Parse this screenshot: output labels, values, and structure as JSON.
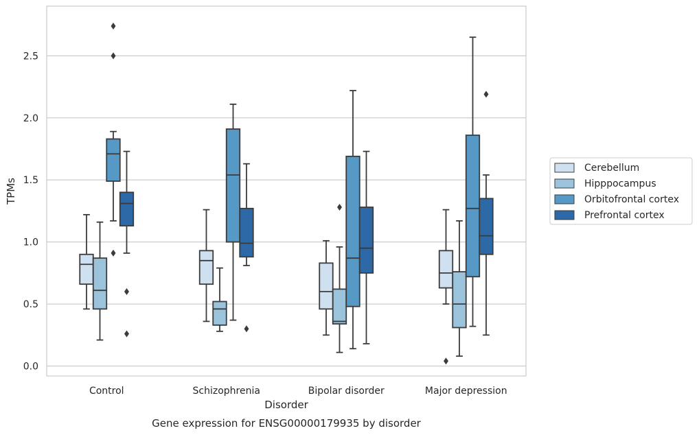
{
  "chart_data": {
    "type": "box",
    "xlabel": "Disorder",
    "ylabel": "TPMs",
    "caption": "Gene expression for ENSG00000179935 by disorder",
    "categories": [
      "Control",
      "Schizophrenia",
      "Bipolar disorder",
      "Major depression"
    ],
    "ylim": [
      -0.08,
      2.9
    ],
    "yticks": [
      "0.0",
      "0.5",
      "1.0",
      "1.5",
      "2.0",
      "2.5"
    ],
    "grid": true,
    "legend_position": "right",
    "series": [
      {
        "name": "Cerebellum",
        "color": "#cfe0f1",
        "boxes": [
          {
            "whisker_low": 0.46,
            "q1": 0.66,
            "median": 0.82,
            "q3": 0.9,
            "whisker_high": 1.22,
            "outliers": []
          },
          {
            "whisker_low": 0.36,
            "q1": 0.66,
            "median": 0.85,
            "q3": 0.93,
            "whisker_high": 1.26,
            "outliers": []
          },
          {
            "whisker_low": 0.25,
            "q1": 0.46,
            "median": 0.6,
            "q3": 0.83,
            "whisker_high": 1.01,
            "outliers": []
          },
          {
            "whisker_low": 0.5,
            "q1": 0.63,
            "median": 0.75,
            "q3": 0.93,
            "whisker_high": 1.26,
            "outliers": [
              0.04
            ]
          }
        ]
      },
      {
        "name": "Hipppocampus",
        "color": "#9cc3dc",
        "boxes": [
          {
            "whisker_low": 0.21,
            "q1": 0.46,
            "median": 0.61,
            "q3": 0.87,
            "whisker_high": 1.16,
            "outliers": []
          },
          {
            "whisker_low": 0.28,
            "q1": 0.33,
            "median": 0.46,
            "q3": 0.52,
            "whisker_high": 0.79,
            "outliers": []
          },
          {
            "whisker_low": 0.11,
            "q1": 0.34,
            "median": 0.36,
            "q3": 0.62,
            "whisker_high": 0.96,
            "outliers": [
              1.28
            ]
          },
          {
            "whisker_low": 0.08,
            "q1": 0.31,
            "median": 0.5,
            "q3": 0.76,
            "whisker_high": 1.17,
            "outliers": []
          }
        ]
      },
      {
        "name": "Orbitofrontal cortex",
        "color": "#5698c6",
        "boxes": [
          {
            "whisker_low": 1.17,
            "q1": 1.49,
            "median": 1.71,
            "q3": 1.83,
            "whisker_high": 1.89,
            "outliers": [
              2.74,
              2.5,
              0.91
            ]
          },
          {
            "whisker_low": 0.37,
            "q1": 1.0,
            "median": 1.54,
            "q3": 1.91,
            "whisker_high": 2.11,
            "outliers": []
          },
          {
            "whisker_low": 0.14,
            "q1": 0.48,
            "median": 0.87,
            "q3": 1.69,
            "whisker_high": 2.22,
            "outliers": []
          },
          {
            "whisker_low": 0.32,
            "q1": 0.72,
            "median": 1.27,
            "q3": 1.86,
            "whisker_high": 2.65,
            "outliers": []
          }
        ]
      },
      {
        "name": "Prefrontal cortex",
        "color": "#2c69a6",
        "boxes": [
          {
            "whisker_low": 0.91,
            "q1": 1.13,
            "median": 1.31,
            "q3": 1.4,
            "whisker_high": 1.73,
            "outliers": [
              0.6,
              0.26
            ]
          },
          {
            "whisker_low": 0.81,
            "q1": 0.88,
            "median": 0.99,
            "q3": 1.27,
            "whisker_high": 1.63,
            "outliers": [
              0.3
            ]
          },
          {
            "whisker_low": 0.18,
            "q1": 0.75,
            "median": 0.95,
            "q3": 1.28,
            "whisker_high": 1.73,
            "outliers": []
          },
          {
            "whisker_low": 0.25,
            "q1": 0.9,
            "median": 1.05,
            "q3": 1.35,
            "whisker_high": 1.54,
            "outliers": [
              2.19
            ]
          }
        ]
      }
    ]
  }
}
